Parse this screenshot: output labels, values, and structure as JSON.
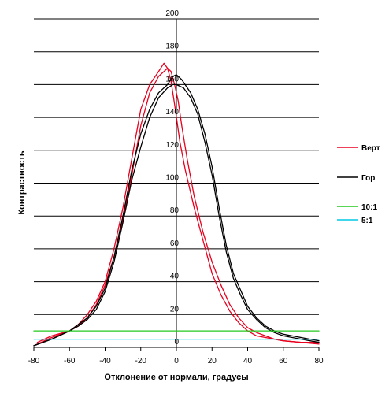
{
  "chart_data": {
    "type": "line",
    "title": "",
    "xlabel": "Отклонение от нормали, градусы",
    "ylabel": "Контрастность",
    "xlim": [
      -80,
      80
    ],
    "ylim": [
      0,
      200
    ],
    "x_ticks": [
      "-80",
      "-60",
      "-40",
      "-20",
      "0",
      "20",
      "40",
      "60",
      "80"
    ],
    "y_ticks": [
      "0",
      "20",
      "40",
      "60",
      "80",
      "100",
      "120",
      "140",
      "160",
      "180",
      "200"
    ],
    "grid": "horizontal",
    "legend_position": "right",
    "series": [
      {
        "name": "Верт",
        "color": "#e8001e",
        "points": [
          [
            -78,
            3
          ],
          [
            -70,
            7
          ],
          [
            -60,
            10
          ],
          [
            -55,
            14
          ],
          [
            -50,
            20
          ],
          [
            -45,
            28
          ],
          [
            -40,
            40
          ],
          [
            -35,
            60
          ],
          [
            -30,
            85
          ],
          [
            -25,
            115
          ],
          [
            -20,
            145
          ],
          [
            -15,
            160
          ],
          [
            -10,
            168
          ],
          [
            -7,
            173
          ],
          [
            -5,
            170
          ],
          [
            -3,
            162
          ],
          [
            -1,
            148
          ],
          [
            2,
            125
          ],
          [
            5,
            108
          ],
          [
            10,
            85
          ],
          [
            15,
            65
          ],
          [
            20,
            45
          ],
          [
            25,
            32
          ],
          [
            30,
            22
          ],
          [
            35,
            15
          ],
          [
            40,
            10
          ],
          [
            45,
            7
          ],
          [
            50,
            6
          ],
          [
            55,
            5
          ],
          [
            60,
            4
          ],
          [
            70,
            3
          ],
          [
            80,
            3
          ]
        ]
      },
      {
        "name": "Верт",
        "color": "#e8001e",
        "points": [
          [
            -80,
            1
          ],
          [
            -70,
            6
          ],
          [
            -60,
            10
          ],
          [
            -55,
            13
          ],
          [
            -50,
            18
          ],
          [
            -45,
            26
          ],
          [
            -40,
            38
          ],
          [
            -35,
            55
          ],
          [
            -30,
            78
          ],
          [
            -25,
            105
          ],
          [
            -20,
            135
          ],
          [
            -15,
            155
          ],
          [
            -10,
            165
          ],
          [
            -5,
            170
          ],
          [
            -3,
            168
          ],
          [
            -1,
            160
          ],
          [
            1,
            150
          ],
          [
            3,
            135
          ],
          [
            6,
            115
          ],
          [
            10,
            92
          ],
          [
            15,
            70
          ],
          [
            20,
            52
          ],
          [
            25,
            38
          ],
          [
            30,
            26
          ],
          [
            35,
            18
          ],
          [
            40,
            12
          ],
          [
            45,
            9
          ],
          [
            50,
            7
          ],
          [
            55,
            5
          ],
          [
            60,
            4
          ],
          [
            70,
            3
          ],
          [
            80,
            2
          ]
        ]
      },
      {
        "name": "Гор",
        "color": "#000000",
        "points": [
          [
            -80,
            1
          ],
          [
            -70,
            5
          ],
          [
            -60,
            10
          ],
          [
            -55,
            14
          ],
          [
            -50,
            18
          ],
          [
            -45,
            25
          ],
          [
            -40,
            36
          ],
          [
            -35,
            55
          ],
          [
            -30,
            80
          ],
          [
            -25,
            108
          ],
          [
            -20,
            130
          ],
          [
            -15,
            145
          ],
          [
            -10,
            155
          ],
          [
            -5,
            160
          ],
          [
            -2,
            165
          ],
          [
            0,
            166
          ],
          [
            3,
            163
          ],
          [
            8,
            155
          ],
          [
            12,
            145
          ],
          [
            16,
            130
          ],
          [
            20,
            110
          ],
          [
            24,
            85
          ],
          [
            28,
            62
          ],
          [
            32,
            45
          ],
          [
            36,
            35
          ],
          [
            40,
            25
          ],
          [
            45,
            18
          ],
          [
            50,
            13
          ],
          [
            55,
            10
          ],
          [
            60,
            8
          ],
          [
            65,
            7
          ],
          [
            70,
            6
          ],
          [
            75,
            5
          ],
          [
            80,
            4
          ]
        ]
      },
      {
        "name": "Гор",
        "color": "#000000",
        "points": [
          [
            -80,
            1
          ],
          [
            -70,
            5
          ],
          [
            -60,
            10
          ],
          [
            -55,
            13
          ],
          [
            -50,
            17
          ],
          [
            -45,
            23
          ],
          [
            -40,
            34
          ],
          [
            -35,
            52
          ],
          [
            -30,
            76
          ],
          [
            -25,
            102
          ],
          [
            -20,
            122
          ],
          [
            -15,
            140
          ],
          [
            -10,
            152
          ],
          [
            -5,
            158
          ],
          [
            -2,
            160
          ],
          [
            0,
            160
          ],
          [
            4,
            158
          ],
          [
            8,
            152
          ],
          [
            12,
            142
          ],
          [
            16,
            125
          ],
          [
            20,
            105
          ],
          [
            24,
            80
          ],
          [
            28,
            58
          ],
          [
            32,
            42
          ],
          [
            36,
            32
          ],
          [
            40,
            23
          ],
          [
            45,
            17
          ],
          [
            50,
            12
          ],
          [
            55,
            9
          ],
          [
            60,
            7
          ],
          [
            65,
            6
          ],
          [
            70,
            5
          ],
          [
            75,
            4
          ],
          [
            80,
            3
          ]
        ]
      },
      {
        "name": "10:1",
        "color": "#22c81e",
        "points": [
          [
            -80,
            10
          ],
          [
            80,
            10
          ]
        ]
      },
      {
        "name": "5:1",
        "color": "#00c8e6",
        "points": [
          [
            -80,
            5
          ],
          [
            80,
            5
          ]
        ]
      }
    ],
    "legend": [
      {
        "label": "Верт",
        "color": "#e8001e"
      },
      {
        "label": "Гор",
        "color": "#000000"
      },
      {
        "label": "10:1",
        "color": "#22c81e"
      },
      {
        "label": "5:1",
        "color": "#00c8e6"
      }
    ]
  }
}
